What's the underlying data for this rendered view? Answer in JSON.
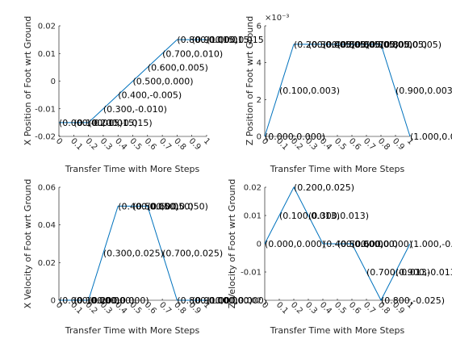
{
  "chart_data": [
    {
      "type": "line",
      "xlabel": "Transfer Time with More Steps",
      "ylabel": "X Position of Foot wrt Ground",
      "xlim": [
        0,
        1
      ],
      "ylim": [
        -0.02,
        0.02
      ],
      "xticks": [
        "0",
        "0.1",
        "0.2",
        "0.3",
        "0.4",
        "0.5",
        "0.6",
        "0.7",
        "0.8",
        "0.9",
        "1"
      ],
      "yticks": [
        "-0.02",
        "-0.01",
        "0",
        "0.01",
        "0.02"
      ],
      "exponent": "",
      "series": [
        {
          "x": [
            0,
            0.1,
            0.2,
            0.3,
            0.4,
            0.5,
            0.6,
            0.7,
            0.8,
            0.9,
            1.0
          ],
          "y": [
            -0.015,
            -0.015,
            -0.015,
            -0.01,
            -0.005,
            0.0,
            0.005,
            0.01,
            0.015,
            0.015,
            0.015
          ]
        }
      ],
      "data_labels": [
        "(0.000,-0.015)",
        "(0.100,-0.015)",
        "(0.200,-0.015)",
        "(0.300,-0.010)",
        "(0.400,-0.005)",
        "(0.500,0.000)",
        "(0.600,0.005)",
        "(0.700,0.010)",
        "(0.800,0.015)",
        "(0.900,0.015)",
        "(1.000,0.015)"
      ]
    },
    {
      "type": "line",
      "xlabel": "Transfer Time with More Steps",
      "ylabel": "Z Position of Foot wrt Ground",
      "xlim": [
        0,
        1
      ],
      "ylim": [
        0,
        0.006
      ],
      "xticks": [
        "0",
        "0.1",
        "0.2",
        "0.3",
        "0.4",
        "0.5",
        "0.6",
        "0.7",
        "0.8",
        "0.9",
        "1"
      ],
      "yticks": [
        "0",
        "2",
        "4",
        "6"
      ],
      "exponent": "×10⁻³",
      "series": [
        {
          "x": [
            0,
            0.1,
            0.2,
            0.3,
            0.4,
            0.5,
            0.6,
            0.7,
            0.8,
            0.9,
            1.0
          ],
          "y": [
            0.0,
            0.0025,
            0.005,
            0.005,
            0.005,
            0.005,
            0.005,
            0.005,
            0.005,
            0.0025,
            0.0
          ]
        }
      ],
      "data_labels": [
        "(0.000,0.000)",
        "(0.100,0.003)",
        "(0.200,0.005)",
        "(0.300,0.005)",
        "(0.400,0.005)",
        "(0.500,0.005)",
        "(0.600,0.005)",
        "(0.700,0.005)",
        "(0.800,0.005)",
        "(0.900,0.003)",
        "(1.000,0.000)"
      ]
    },
    {
      "type": "line",
      "xlabel": "Transfer Time with More Steps",
      "ylabel": "X Velocity of Foot wrt Ground",
      "xlim": [
        0,
        1
      ],
      "ylim": [
        0,
        0.06
      ],
      "xticks": [
        "0",
        "0.1",
        "0.2",
        "0.3",
        "0.4",
        "0.5",
        "0.6",
        "0.7",
        "0.8",
        "0.9",
        "1"
      ],
      "yticks": [
        "0",
        "0.02",
        "0.04",
        "0.06"
      ],
      "exponent": "",
      "series": [
        {
          "x": [
            0,
            0.1,
            0.2,
            0.3,
            0.4,
            0.5,
            0.6,
            0.7,
            0.8,
            0.9,
            1.0
          ],
          "y": [
            0.0,
            0.0,
            0.0,
            0.025,
            0.05,
            0.05,
            0.05,
            0.025,
            0.0,
            0.0,
            0.0
          ]
        }
      ],
      "data_labels": [
        "(0.000,0.000)",
        "(0.100,0.000)",
        "(0.200,0.000)",
        "(0.300,0.025)",
        "(0.400,0.050)",
        "(0.500,0.050)",
        "(0.600,0.050)",
        "(0.700,0.025)",
        "(0.800,0.000)",
        "(0.900,0.000)",
        "(1.000,0.000)"
      ]
    },
    {
      "type": "line",
      "xlabel": "Transfer Time with More Steps",
      "ylabel": "Z Velocity of Foot wrt Ground",
      "xlim": [
        0,
        1
      ],
      "ylim": [
        -0.025,
        0.025
      ],
      "xticks": [
        "0",
        "0.1",
        "0.2",
        "0.3",
        "0.4",
        "0.5",
        "0.6",
        "0.7",
        "0.8",
        "0.9",
        "1"
      ],
      "yticks": [
        "-0.02",
        "-0.01",
        "0",
        "0.01",
        "0.02"
      ],
      "exponent": "",
      "series": [
        {
          "x": [
            0,
            0.1,
            0.2,
            0.3,
            0.4,
            0.5,
            0.6,
            0.7,
            0.8,
            0.9,
            1.0
          ],
          "y": [
            0.0,
            0.0125,
            0.025,
            0.0125,
            0.0,
            0.0,
            0.0,
            -0.0125,
            -0.025,
            -0.0125,
            0.0
          ]
        }
      ],
      "data_labels": [
        "(0.000,0.000)",
        "(0.100,0.013)",
        "(0.200,0.025)",
        "(0.300,0.013)",
        "(0.400,0.000)",
        "(0.500,0.000)",
        "(0.600,0.000)",
        "(0.700,-0.013)",
        "(0.800,-0.025)",
        "(0.900,-0.013)",
        "(1.000,-0.000)"
      ]
    }
  ]
}
